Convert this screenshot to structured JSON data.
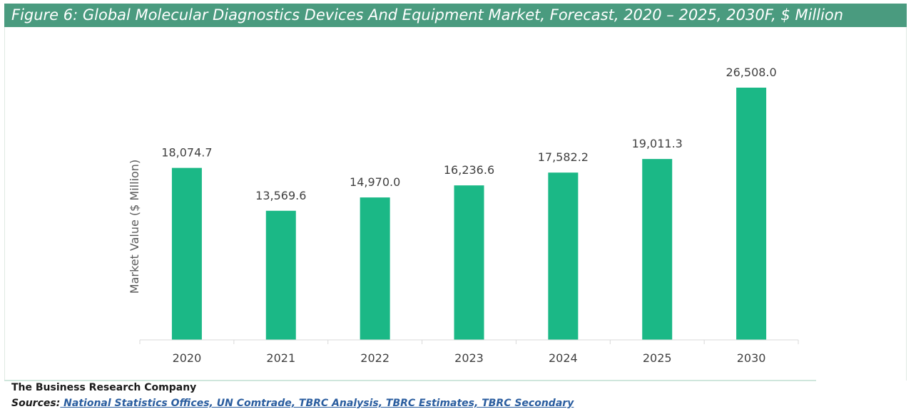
{
  "figure": {
    "title": "Figure 6: Global Molecular Diagnostics Devices And Equipment Market, Forecast, 2020 – 2025, 2030F, $ Million"
  },
  "chart_data": {
    "type": "bar",
    "title": "Figure 6: Global Molecular Diagnostics Devices And Equipment Market, Forecast, 2020 – 2025, 2030F, $ Million",
    "xlabel": "",
    "ylabel": "Market Value ($ Million)",
    "categories": [
      "2020",
      "2021",
      "2022",
      "2023",
      "2024",
      "2025",
      "2030"
    ],
    "values": [
      18074.7,
      13569.6,
      14970.0,
      16236.6,
      17582.2,
      19011.3,
      26508.0
    ],
    "value_labels": [
      "18,074.7",
      "13,569.6",
      "14,970.0",
      "16,236.6",
      "17,582.2",
      "19,011.3",
      "26,508.0"
    ],
    "ylim": [
      0,
      30000
    ],
    "bar_color": "#1bb886",
    "grid": false,
    "legend": "none"
  },
  "footer": {
    "company": "The Business Research Company",
    "sources_label": "Sources:",
    "sources_text": " National Statistics Offices, UN Comtrade, TBRC Analysis, TBRC Estimates, TBRC Secondary"
  }
}
